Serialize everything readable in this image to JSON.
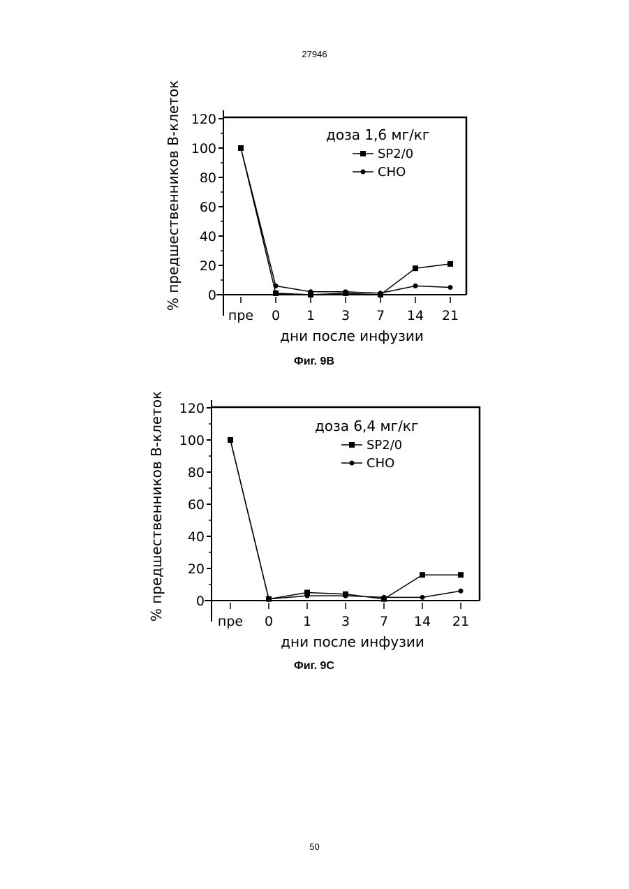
{
  "page": {
    "header": "27946",
    "footer": "50"
  },
  "chart_data": [
    {
      "type": "line",
      "caption": "Фиг. 9В",
      "legend_title": "доза 1,6 мг/кг",
      "xlabel": "дни после инфузии",
      "ylabel": "% предшественников В-клеток",
      "categories": [
        "пре",
        "0",
        "1",
        "3",
        "7",
        "14",
        "21"
      ],
      "yticks": [
        "0",
        "20",
        "40",
        "60",
        "80",
        "100",
        "120"
      ],
      "ylim": [
        0,
        120
      ],
      "series": [
        {
          "name": "SP2/0",
          "marker": "square",
          "values": [
            100,
            1,
            0,
            1,
            0,
            18,
            21
          ]
        },
        {
          "name": "CHO",
          "marker": "diamond",
          "values": [
            100,
            6,
            2,
            2,
            1,
            6,
            5
          ]
        }
      ]
    },
    {
      "type": "line",
      "caption": "Фиг. 9С",
      "legend_title": "доза 6,4 мг/кг",
      "xlabel": "дни после инфузии",
      "ylabel": "% предшественников В-клеток",
      "categories": [
        "пре",
        "0",
        "1",
        "3",
        "7",
        "14",
        "21"
      ],
      "yticks": [
        "0",
        "20",
        "40",
        "60",
        "80",
        "100",
        "120"
      ],
      "ylim": [
        0,
        120
      ],
      "series": [
        {
          "name": "SP2/0",
          "marker": "square",
          "values": [
            100,
            1,
            5,
            4,
            1,
            16,
            16
          ]
        },
        {
          "name": "CHO",
          "marker": "diamond",
          "values": [
            100,
            1,
            3,
            3,
            2,
            2,
            6
          ]
        }
      ]
    }
  ]
}
